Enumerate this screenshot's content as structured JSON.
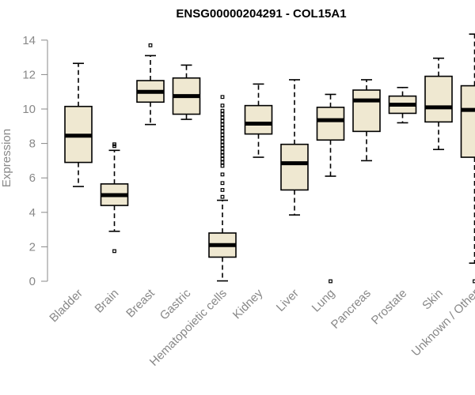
{
  "chart_data": {
    "type": "box",
    "title": "ENSG00000204291 - COL15A1",
    "ylabel": "Expression",
    "xlabel": "",
    "ylim": [
      0,
      14.4
    ],
    "yticks": [
      0,
      2,
      4,
      6,
      8,
      10,
      12,
      14
    ],
    "grid": false,
    "colors": {
      "box_fill": "#efe8d1",
      "stroke": "#000000",
      "axis": "#888888"
    },
    "categories": [
      "Bladder",
      "Brain",
      "Breast",
      "Gastric",
      "Hematopoietic cells",
      "Kidney",
      "Liver",
      "Lung",
      "Pancreas",
      "Prostate",
      "Skin",
      "Unknown / Other"
    ],
    "boxes": [
      {
        "category": "Bladder",
        "min": 5.5,
        "q1": 6.9,
        "median": 8.45,
        "q3": 10.15,
        "max": 12.65,
        "outliers": []
      },
      {
        "category": "Brain",
        "min": 2.9,
        "q1": 4.4,
        "median": 5.0,
        "q3": 5.65,
        "max": 7.6,
        "outliers": [
          7.85,
          7.95,
          1.75
        ]
      },
      {
        "category": "Breast",
        "min": 9.1,
        "q1": 10.4,
        "median": 11.0,
        "q3": 11.65,
        "max": 13.1,
        "outliers": [
          13.7
        ]
      },
      {
        "category": "Gastric",
        "min": 9.4,
        "q1": 9.7,
        "median": 10.75,
        "q3": 11.8,
        "max": 12.55,
        "outliers": []
      },
      {
        "category": "Hematopoietic cells",
        "min": 0.02,
        "q1": 1.4,
        "median": 2.1,
        "q3": 2.8,
        "max": 4.7,
        "outliers": [
          4.9,
          5.3,
          5.7,
          6.2,
          6.7,
          6.9,
          7.1,
          7.3,
          7.5,
          7.7,
          7.9,
          8.1,
          8.3,
          8.5,
          8.7,
          8.9,
          9.1,
          9.3,
          9.5,
          9.7,
          9.9,
          10.2,
          10.7
        ]
      },
      {
        "category": "Kidney",
        "min": 7.2,
        "q1": 8.55,
        "median": 9.15,
        "q3": 10.2,
        "max": 11.45,
        "outliers": []
      },
      {
        "category": "Liver",
        "min": 3.85,
        "q1": 5.3,
        "median": 6.85,
        "q3": 7.95,
        "max": 11.7,
        "outliers": []
      },
      {
        "category": "Lung",
        "min": 6.1,
        "q1": 8.2,
        "median": 9.35,
        "q3": 10.1,
        "max": 10.85,
        "outliers": [
          0.0
        ]
      },
      {
        "category": "Pancreas",
        "min": 7.0,
        "q1": 8.7,
        "median": 10.5,
        "q3": 11.1,
        "max": 11.7,
        "outliers": []
      },
      {
        "category": "Prostate",
        "min": 9.2,
        "q1": 9.75,
        "median": 10.25,
        "q3": 10.75,
        "max": 11.25,
        "outliers": []
      },
      {
        "category": "Skin",
        "min": 7.65,
        "q1": 9.25,
        "median": 10.1,
        "q3": 11.9,
        "max": 12.95,
        "outliers": []
      },
      {
        "category": "Unknown / Other",
        "min": 1.05,
        "q1": 7.2,
        "median": 9.95,
        "q3": 11.35,
        "max": 14.35,
        "outliers": [
          0.0
        ]
      }
    ]
  }
}
